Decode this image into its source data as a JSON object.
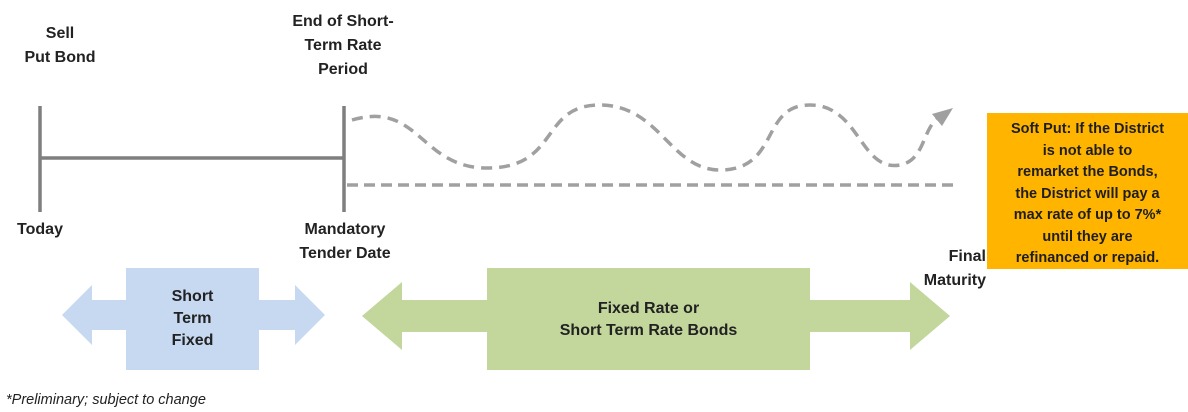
{
  "labels": {
    "sell_put_bond": [
      "Sell",
      "Put Bond"
    ],
    "end_short_term": [
      "End of Short-",
      "Term Rate",
      "Period"
    ],
    "today": "Today",
    "mandatory_tender": [
      "Mandatory",
      "Tender Date"
    ],
    "final_maturity": [
      "Final",
      "Maturity"
    ]
  },
  "soft_put": {
    "lines": [
      "Soft Put: If the District",
      "is not able to",
      "remarket the Bonds,",
      "the District will pay a",
      "max rate of up to 7%*",
      "until they are",
      "refinanced or repaid."
    ],
    "color": "#ffb400"
  },
  "arrows": {
    "short_term_fixed": {
      "lines": [
        "Short",
        "Term",
        "Fixed"
      ],
      "arrow_color": "#c6d9f1",
      "box_color": "#c6d9f1"
    },
    "fixed_or_short": {
      "lines": [
        "Fixed Rate or",
        "Short Term Rate Bonds"
      ],
      "arrow_color": "#c3d69b",
      "box_color": "#c3d69b"
    }
  },
  "footnote": "*Preliminary; subject to change",
  "colors": {
    "timeline": "#7f7f7f",
    "dashed": "#a0a0a0"
  }
}
